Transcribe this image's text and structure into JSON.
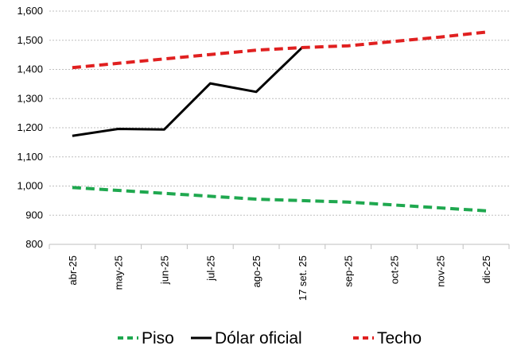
{
  "chart_data": {
    "type": "line",
    "categories": [
      "abr-25",
      "may-25",
      "jun-25",
      "jul-25",
      "ago-25",
      "17 set. 25",
      "sep-25",
      "oct-25",
      "nov-25",
      "dic-25"
    ],
    "ylim": [
      800,
      1600
    ],
    "yticks": [
      "800",
      "900",
      "1,000",
      "1,100",
      "1,200",
      "1,300",
      "1,400",
      "1,500",
      "1,600"
    ],
    "grid": true,
    "legend_position": "bottom",
    "series": [
      {
        "name": "Piso",
        "color": "#1fa84f",
        "style": "dashed",
        "values": [
          995,
          985,
          975,
          965,
          955,
          950,
          945,
          935,
          925,
          915
        ]
      },
      {
        "name": "Dólar oficial",
        "color": "#000000",
        "style": "solid",
        "values": [
          1172,
          1196,
          1194,
          1352,
          1323,
          1475,
          null,
          null,
          null,
          null
        ]
      },
      {
        "name": "Techo",
        "color": "#e02020",
        "style": "dashed",
        "values": [
          1406,
          1421,
          1436,
          1451,
          1466,
          1475,
          1481,
          1496,
          1511,
          1528
        ]
      }
    ]
  }
}
